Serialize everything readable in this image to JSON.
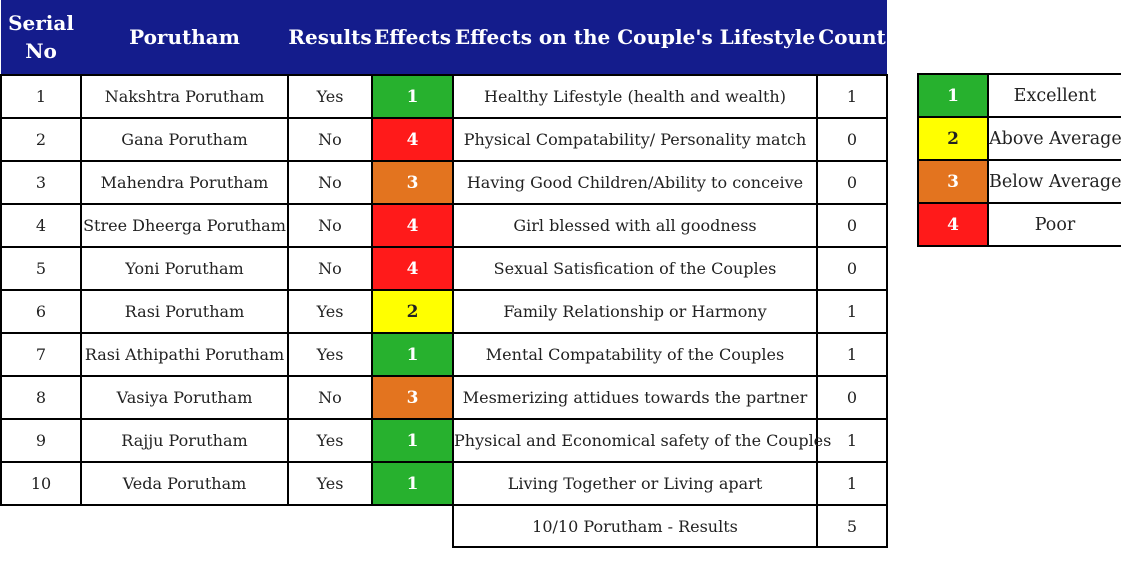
{
  "headers": {
    "serial_line1": "Serial",
    "serial_line2": "No",
    "porutham": "Porutham",
    "results": "Results",
    "effects": "Effects",
    "lifestyle": "Effects on the Couple's Lifestyle",
    "count": "Count"
  },
  "rows": [
    {
      "serial": "1",
      "porutham": "Nakshtra Porutham",
      "result": "Yes",
      "effect": "1",
      "lifestyle": "Healthy Lifestyle (health and wealth)",
      "count": "1"
    },
    {
      "serial": "2",
      "porutham": "Gana Porutham",
      "result": "No",
      "effect": "4",
      "lifestyle": "Physical Compatability/ Personality match",
      "count": "0"
    },
    {
      "serial": "3",
      "porutham": "Mahendra Porutham",
      "result": "No",
      "effect": "3",
      "lifestyle": "Having Good Children/Ability to conceive",
      "count": "0"
    },
    {
      "serial": "4",
      "porutham": "Stree Dheerga Porutham",
      "result": "No",
      "effect": "4",
      "lifestyle": "Girl blessed with all goodness",
      "count": "0"
    },
    {
      "serial": "5",
      "porutham": "Yoni Porutham",
      "result": "No",
      "effect": "4",
      "lifestyle": "Sexual Satisfication of the Couples",
      "count": "0"
    },
    {
      "serial": "6",
      "porutham": "Rasi Porutham",
      "result": "Yes",
      "effect": "2",
      "lifestyle": "Family Relationship or Harmony",
      "count": "1"
    },
    {
      "serial": "7",
      "porutham": "Rasi Athipathi Porutham",
      "result": "Yes",
      "effect": "1",
      "lifestyle": "Mental Compatability of the Couples",
      "count": "1"
    },
    {
      "serial": "8",
      "porutham": "Vasiya Porutham",
      "result": "No",
      "effect": "3",
      "lifestyle": "Mesmerizing attidues towards the partner",
      "count": "0"
    },
    {
      "serial": "9",
      "porutham": "Rajju Porutham",
      "result": "Yes",
      "effect": "1",
      "lifestyle": "Physical and Economical safety of the Couples",
      "count": "1"
    },
    {
      "serial": "10",
      "porutham": "Veda Porutham",
      "result": "Yes",
      "effect": "1",
      "lifestyle": "Living Together or Living apart",
      "count": "1"
    }
  ],
  "total": {
    "label": "10/10 Porutham - Results",
    "count": "5"
  },
  "legend": [
    {
      "num": "1",
      "label": "Excellent"
    },
    {
      "num": "2",
      "label": "Above Average"
    },
    {
      "num": "3",
      "label": "Below Average"
    },
    {
      "num": "4",
      "label": "Poor"
    }
  ],
  "colors": {
    "header_bg": "#141c8c",
    "excellent": "#27b12e",
    "above_average": "#ffff00",
    "below_average": "#e3741f",
    "poor": "#ff1a1a"
  }
}
